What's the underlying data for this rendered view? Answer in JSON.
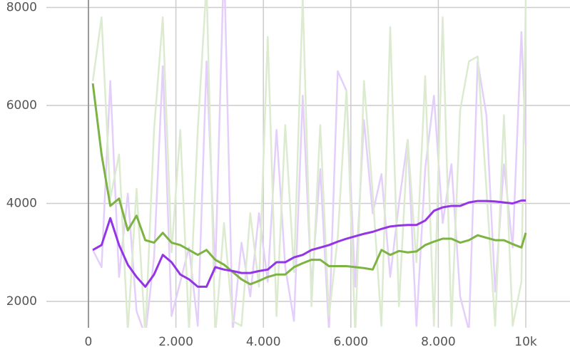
{
  "chart_data": {
    "type": "line",
    "x": [
      100,
      300,
      500,
      700,
      900,
      1100,
      1300,
      1500,
      1700,
      1900,
      2100,
      2300,
      2500,
      2700,
      2900,
      3100,
      3300,
      3500,
      3700,
      3900,
      4100,
      4300,
      4500,
      4700,
      4900,
      5100,
      5300,
      5500,
      5700,
      5900,
      6100,
      6300,
      6500,
      6700,
      6900,
      7100,
      7300,
      7500,
      7700,
      7900,
      8100,
      8300,
      8500,
      8700,
      8900,
      9100,
      9300,
      9500,
      9700,
      9900,
      10000
    ],
    "series": [
      {
        "color": "#e4cffa",
        "values": [
          3050,
          2700,
          6500,
          2500,
          4200,
          1800,
          1300,
          2900,
          6800,
          1700,
          2400,
          3100,
          1500,
          6900,
          2600,
          9000,
          1400,
          3200,
          2100,
          3800,
          2400,
          5500,
          2700,
          1600,
          6200,
          2300,
          4700,
          1400,
          6700,
          6300,
          2300,
          5700,
          3800,
          4600,
          2500,
          4000,
          5300,
          1500,
          4700,
          6200,
          3600,
          4800,
          2100,
          1400,
          6900,
          5800,
          2200,
          4800,
          3100,
          7500,
          5200
        ]
      },
      {
        "color": "#dcebd0",
        "values": [
          6500,
          7800,
          4100,
          5000,
          1400,
          4300,
          1300,
          5500,
          7800,
          3000,
          5500,
          1400,
          5500,
          8500,
          1300,
          3600,
          1600,
          1500,
          3800,
          2300,
          7400,
          1700,
          5600,
          2600,
          8200,
          1900,
          5600,
          1700,
          3300,
          6300,
          1300,
          6500,
          4200,
          1500,
          7600,
          1900,
          5300,
          2800,
          6600,
          1500,
          7800,
          1500,
          5900,
          6900,
          7000,
          4300,
          1500,
          5800,
          1500,
          2400,
          8200
        ]
      },
      {
        "color": "#7cb342",
        "values": [
          6450,
          5000,
          3950,
          4100,
          3450,
          3750,
          3250,
          3200,
          3400,
          3200,
          3150,
          3050,
          2950,
          3050,
          2850,
          2750,
          2600,
          2450,
          2350,
          2420,
          2500,
          2550,
          2550,
          2700,
          2780,
          2850,
          2850,
          2720,
          2720,
          2720,
          2700,
          2680,
          2650,
          3050,
          2950,
          3030,
          3000,
          3020,
          3150,
          3220,
          3280,
          3280,
          3200,
          3250,
          3350,
          3300,
          3250,
          3250,
          3170,
          3100,
          3400
        ]
      },
      {
        "color": "#9334e6",
        "values": [
          3050,
          3150,
          3700,
          3150,
          2750,
          2500,
          2300,
          2550,
          2950,
          2800,
          2550,
          2450,
          2300,
          2300,
          2700,
          2650,
          2620,
          2580,
          2580,
          2620,
          2650,
          2800,
          2800,
          2900,
          2950,
          3050,
          3100,
          3150,
          3220,
          3280,
          3330,
          3380,
          3420,
          3480,
          3530,
          3550,
          3560,
          3560,
          3650,
          3850,
          3920,
          3950,
          3950,
          4020,
          4050,
          4050,
          4040,
          4020,
          4000,
          4060,
          4060
        ]
      }
    ],
    "xlim": [
      -962,
      11011
    ],
    "ylim": [
      1462,
      8153
    ],
    "xticks": [
      0,
      {
        "value": 2000,
        "label": "2.000"
      },
      {
        "value": 4000,
        "label": "4.000"
      },
      {
        "value": 6000,
        "label": "6.000"
      },
      {
        "value": 8000,
        "label": "8.000"
      },
      {
        "value": 10000,
        "label": "10k"
      }
    ],
    "yticks": [
      2000,
      4000,
      6000,
      8000
    ],
    "grid": true
  }
}
